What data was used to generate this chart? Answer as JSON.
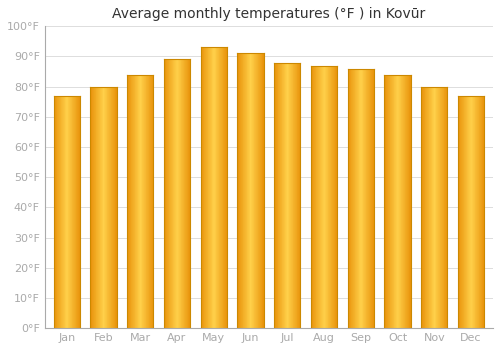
{
  "title": "Average monthly temperatures (°F ) in Kovūr",
  "months": [
    "Jan",
    "Feb",
    "Mar",
    "Apr",
    "May",
    "Jun",
    "Jul",
    "Aug",
    "Sep",
    "Oct",
    "Nov",
    "Dec"
  ],
  "values": [
    77,
    80,
    84,
    89,
    93,
    91,
    88,
    87,
    86,
    84,
    80,
    77
  ],
  "ylim": [
    0,
    100
  ],
  "yticks": [
    0,
    10,
    20,
    30,
    40,
    50,
    60,
    70,
    80,
    90,
    100
  ],
  "ytick_labels": [
    "0°F",
    "10°F",
    "20°F",
    "30°F",
    "40°F",
    "50°F",
    "60°F",
    "70°F",
    "80°F",
    "90°F",
    "100°F"
  ],
  "bar_color_left": "#E8920A",
  "bar_color_center": "#FFD04A",
  "bar_edge_color": "#CC8800",
  "background_color": "#FFFFFF",
  "plot_bg_color": "#FFFFFF",
  "grid_color": "#DDDDDD",
  "tick_color": "#AAAAAA",
  "title_fontsize": 10,
  "tick_fontsize": 8,
  "bar_width": 0.72
}
